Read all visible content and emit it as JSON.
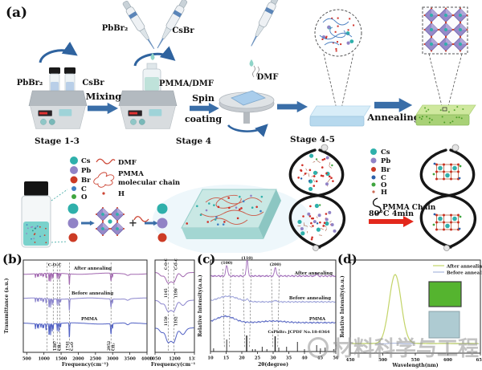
{
  "panels": {
    "a": "(a)",
    "b": "(b)",
    "c": "(c)",
    "d": "(d)"
  },
  "process": {
    "stage13": {
      "vial1": "PbBr₂",
      "vial2": "CsBr",
      "stage_label": "Stage 1-3"
    },
    "mixing_label": "Mixing",
    "stage4": {
      "pipette1": "PbBr₂",
      "pipette2": "CsBr",
      "solution": "PMMA/DMF",
      "stage_label": "Stage 4"
    },
    "spin_label1": "Spin",
    "spin_label2": "coating",
    "dmf_label": "DMF",
    "stage45_label": "Stage 4-5",
    "annealing_label": "Annealing"
  },
  "legend_solution": {
    "items": [
      {
        "label": "Cs",
        "color": "#2fb0ab"
      },
      {
        "label": "Pb",
        "color": "#9183c6"
      },
      {
        "label": "Br",
        "color": "#cc3b25"
      },
      {
        "label": "C",
        "color": "#3f7fc4"
      },
      {
        "label": "O",
        "color": "#3fa53f"
      }
    ],
    "dmf": "DMF",
    "pmma1": "PMMA",
    "pmma2": "molecular chain",
    "h": "H",
    "plus": "+"
  },
  "legend_chain": {
    "items": [
      {
        "label": "Cs",
        "color": "#2fb0ab"
      },
      {
        "label": "Pb",
        "color": "#9183c6"
      },
      {
        "label": "Br",
        "color": "#cc3b25"
      },
      {
        "label": "C",
        "color": "#2b5fa8"
      },
      {
        "label": "O",
        "color": "#3fa53f"
      },
      {
        "label": "H",
        "color": "#cc6a55"
      }
    ],
    "pmma_chain": "PMMA Chain",
    "anneal_condition": "80°C  4min"
  },
  "watermark": {
    "text": "材料科学与工程"
  },
  "chart_data": [
    {
      "id": "ftir",
      "type": "line",
      "xlabel": "Frequency(cm⁻¹)",
      "ylabel": "Transmittance (a.u.)",
      "xlim": [
        400,
        4000
      ],
      "xticks": [
        500,
        1000,
        1500,
        2000,
        2500,
        3000,
        3500,
        4000
      ],
      "series": [
        {
          "name": "After annealing",
          "color": "#a268b0",
          "baseline": 26,
          "depth": 14
        },
        {
          "name": "Before annealing",
          "color": "#8b85cd",
          "baseline": 57,
          "depth": 15
        },
        {
          "name": "PMMA",
          "color": "#5161c4",
          "baseline": 88,
          "depth": 19
        }
      ],
      "peaks": [
        [
          754,
          9,
          0.35
        ],
        [
          813,
          8,
          0.25
        ],
        [
          842,
          8,
          0.3
        ],
        [
          912,
          8,
          0.25
        ],
        [
          967,
          8,
          0.3
        ],
        [
          990,
          8,
          0.3
        ],
        [
          1063,
          9,
          0.45
        ],
        [
          1150,
          10,
          0.8
        ],
        [
          1193,
          9,
          0.75
        ],
        [
          1242,
          9,
          0.5
        ],
        [
          1270,
          8,
          0.4
        ],
        [
          1387,
          8,
          0.5
        ],
        [
          1435,
          9,
          0.55
        ],
        [
          1485,
          8,
          0.3
        ],
        [
          1741,
          12,
          1.0
        ],
        [
          2952,
          16,
          0.7
        ],
        [
          2997,
          10,
          0.35
        ],
        [
          3440,
          60,
          0.12
        ]
      ],
      "dashed_x": [
        1085,
        1270,
        1387,
        1460,
        1741,
        2952
      ],
      "coc_label": "C-O-C",
      "bottom_annotations": [
        {
          "x": 1387,
          "num": "1387",
          "grp": "CH₃"
        },
        {
          "x": 1741,
          "num": "1741",
          "grp": "C=O"
        },
        {
          "x": 2952,
          "num": "2952",
          "grp": "CH₃"
        }
      ],
      "zoom": {
        "xlim": [
          1050,
          1350
        ],
        "xticks": [
          1050,
          1200,
          1350
        ],
        "xlabel": "Frequency(cm⁻¹)",
        "dashed_x": [
          1150,
          1193
        ],
        "annotations": [
          [
            "C-O-C",
            "C-O-C"
          ],
          [
            "1145",
            "1190"
          ],
          [
            "1150",
            "1192"
          ]
        ]
      }
    },
    {
      "id": "xrd",
      "type": "line",
      "xlabel": "2θ(degree)",
      "ylabel": "Relative Intensity(a.u.)",
      "xlim": [
        10,
        50
      ],
      "xticks": [
        10,
        15,
        20,
        25,
        30,
        35,
        40,
        45,
        50
      ],
      "series": [
        {
          "name": "After annealing",
          "color": "#9f6ab8",
          "baseline": 30,
          "noise": 1.1,
          "peaks": [
            [
              15.2,
              0.45,
              13
            ],
            [
              21.7,
              0.4,
              20
            ],
            [
              30.7,
              0.4,
              11
            ],
            [
              43.9,
              0.3,
              4
            ]
          ]
        },
        {
          "name": "Before annealing",
          "color": "#9aa0d8",
          "baseline": 62,
          "noise": 0.9,
          "peaks": [
            [
              15.5,
              4.5,
              7
            ],
            [
              21.7,
              0.5,
              2.5
            ],
            [
              30.7,
              0.5,
              2
            ]
          ]
        },
        {
          "name": "PMMA",
          "color": "#5b6ac4",
          "baseline": 88,
          "noise": 1.0,
          "peaks": [
            [
              14.8,
              4.0,
              8
            ],
            [
              30,
              5,
              2
            ]
          ]
        }
      ],
      "peak_labels": [
        {
          "x": 15.2,
          "label": "(100)"
        },
        {
          "x": 21.7,
          "label": "(110)"
        },
        {
          "x": 30.7,
          "label": "(200)"
        }
      ],
      "reference": {
        "label": "CsPbBr₃  JCPDF No.18-0364",
        "sticks": [
          [
            11.0,
            4
          ],
          [
            15.18,
            15
          ],
          [
            21.55,
            20
          ],
          [
            23.4,
            3
          ],
          [
            24.3,
            3
          ],
          [
            26.5,
            6
          ],
          [
            28.0,
            3
          ],
          [
            30.64,
            19
          ],
          [
            31.8,
            5
          ],
          [
            34.3,
            6
          ],
          [
            37.75,
            12
          ],
          [
            40.0,
            3
          ],
          [
            43.89,
            8
          ],
          [
            45.1,
            4
          ],
          [
            46.6,
            5
          ],
          [
            49.3,
            3
          ]
        ]
      }
    },
    {
      "id": "pl",
      "type": "line",
      "xlabel": "Wavelength(nm)",
      "ylabel": "Relative Intensity(a.u.)",
      "xlim": [
        450,
        650
      ],
      "xticks": [
        450,
        500,
        550,
        600,
        650
      ],
      "series": [
        {
          "name": "After annealing",
          "color": "#c3d468",
          "peak": [
            519,
            13,
            86
          ]
        },
        {
          "name": "Before annealing",
          "color": "#a8b6dd",
          "peak": null
        }
      ],
      "insets": [
        {
          "name": "film-after",
          "color": "#55b42f",
          "border": "#3c3c3c"
        },
        {
          "name": "film-before",
          "color": "#aecbd2",
          "border": "#8aa0a8"
        }
      ]
    }
  ]
}
